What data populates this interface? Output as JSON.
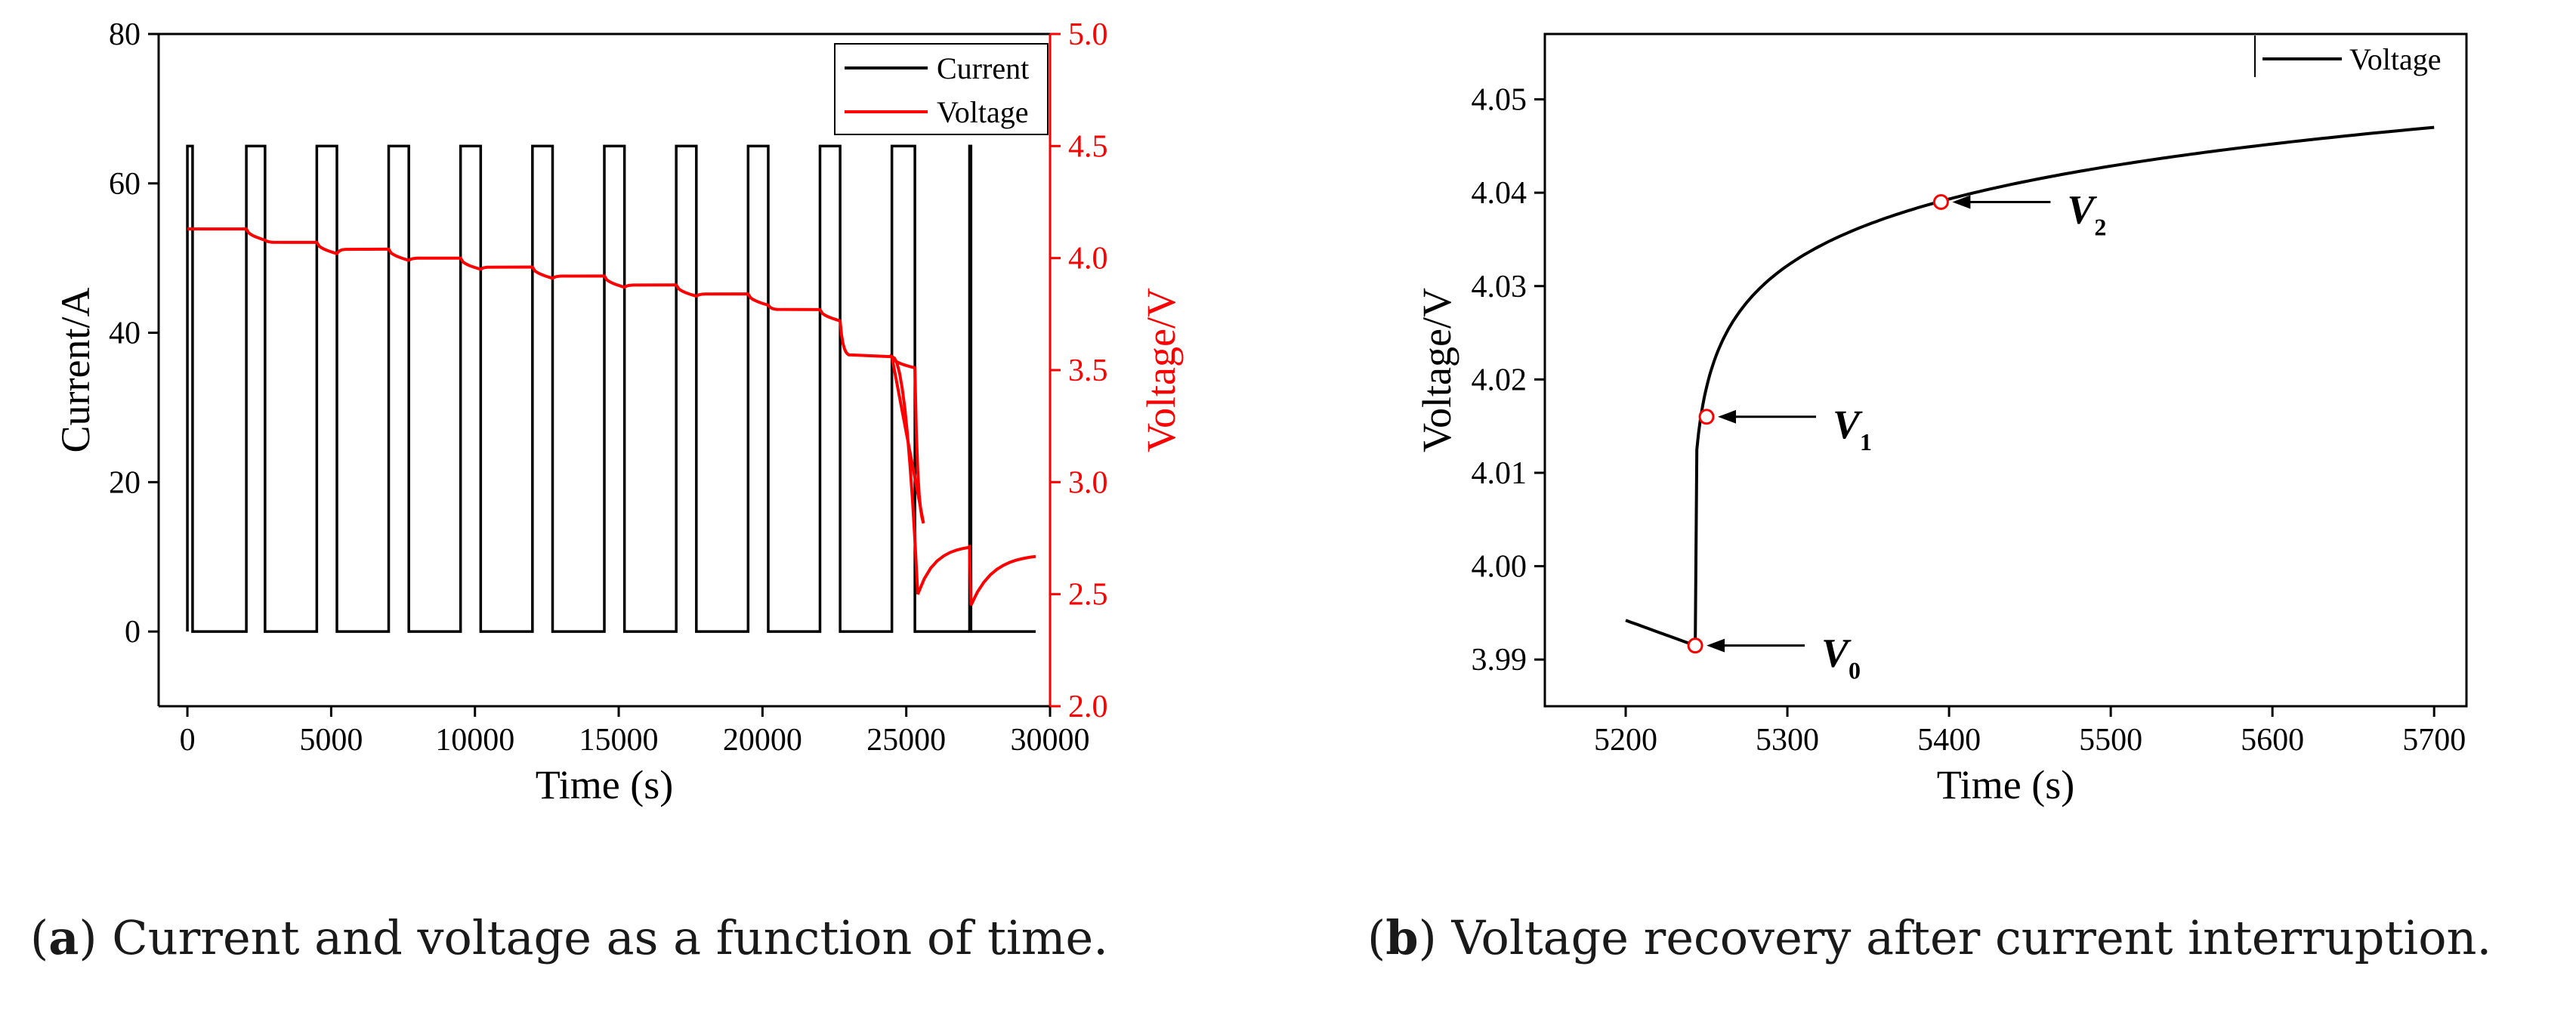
{
  "chart_data": [
    {
      "id": "a",
      "type": "line",
      "xlabel": "Time (s)",
      "ylabel_left": "Current/A",
      "ylabel_right": "Voltage/V",
      "xlim": [
        -1000,
        30000
      ],
      "ylim_left": [
        -10,
        80
      ],
      "ylim_right": [
        2.0,
        5.0
      ],
      "x_ticks": [
        "0",
        "5000",
        "10000",
        "15000",
        "20000",
        "25000",
        "30000"
      ],
      "y_left_ticks": [
        "0",
        "20",
        "40",
        "60",
        "80"
      ],
      "y_right_ticks": [
        "2.0",
        "2.5",
        "3.0",
        "3.5",
        "4.0",
        "4.5",
        "5.0"
      ],
      "legend": [
        {
          "label": "Current",
          "color": "#000000"
        },
        {
          "label": "Voltage",
          "color": "#ff0000"
        }
      ],
      "legend_position": "top-right",
      "pulses": [
        {
          "on": 0,
          "off": 180
        },
        {
          "on": 2050,
          "off": 2700
        },
        {
          "on": 4500,
          "off": 5200
        },
        {
          "on": 7000,
          "off": 7700
        },
        {
          "on": 9500,
          "off": 10200
        },
        {
          "on": 12000,
          "off": 12700
        },
        {
          "on": 14500,
          "off": 15200
        },
        {
          "on": 17000,
          "off": 17700
        },
        {
          "on": 19500,
          "off": 20200
        },
        {
          "on": 22000,
          "off": 22700
        },
        {
          "on": 24500,
          "off": 25300
        },
        {
          "on": 27200,
          "off": 27250
        }
      ],
      "current_high": 65,
      "current_low": 0,
      "voltage_levels": [
        4.13,
        4.07,
        4.04,
        4.0,
        3.96,
        3.92,
        3.88,
        3.84,
        3.77,
        3.56,
        2.78,
        2.72
      ],
      "voltage_drop": 0.05
    },
    {
      "id": "b",
      "type": "line",
      "xlabel": "Time (s)",
      "ylabel": "Voltage/V",
      "xlim": [
        5150,
        5720
      ],
      "ylim": [
        3.985,
        4.057
      ],
      "x_ticks": [
        "5200",
        "5300",
        "5400",
        "5500",
        "5600",
        "5700"
      ],
      "y_ticks": [
        "3.99",
        "4.00",
        "4.01",
        "4.02",
        "4.03",
        "4.04",
        "4.05"
      ],
      "legend": [
        {
          "label": "Voltage",
          "color": "#000000"
        }
      ],
      "legend_position": "top-right",
      "series": [
        {
          "name": "Voltage",
          "start": [
            5200,
            3.9942
          ],
          "interrupt": [
            5243,
            3.9915
          ],
          "jump_to": 4.0125,
          "end": [
            5700,
            4.047
          ]
        }
      ],
      "markers": [
        {
          "label": "V",
          "sub": "0",
          "x": 5243,
          "y": 3.9915
        },
        {
          "label": "V",
          "sub": "1",
          "x": 5250,
          "y": 4.016
        },
        {
          "label": "V",
          "sub": "2",
          "x": 5395,
          "y": 4.039
        }
      ]
    }
  ],
  "captions": {
    "a_letter": "a",
    "a_text": "Current and voltage as a function of time.",
    "b_letter": "b",
    "b_text": "Voltage recovery after current interruption."
  }
}
